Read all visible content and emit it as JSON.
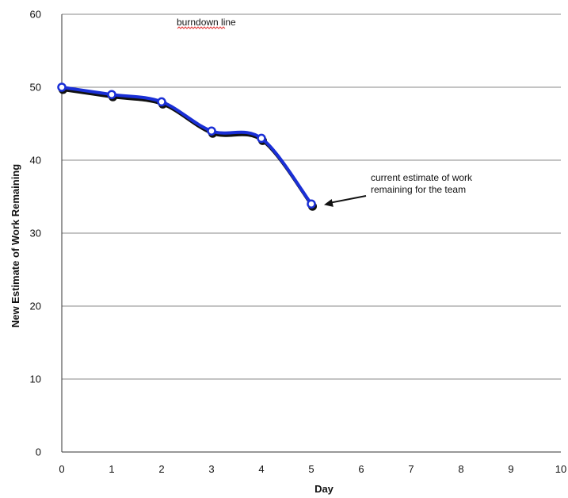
{
  "chart_data": {
    "type": "line",
    "title": "",
    "xlabel": "Day",
    "ylabel": "New Estimate of Work Remaining",
    "xlim": [
      0,
      10
    ],
    "ylim": [
      0,
      60
    ],
    "x_ticks": [
      "0",
      "1",
      "2",
      "3",
      "4",
      "5",
      "6",
      "7",
      "8",
      "9",
      "10"
    ],
    "y_ticks": [
      "0",
      "10",
      "20",
      "30",
      "40",
      "50",
      "60"
    ],
    "grid": "horizontal",
    "legend": "none",
    "series": [
      {
        "color": "#1a2fd6",
        "x": [
          0,
          1,
          2,
          3,
          4,
          5
        ],
        "y": [
          50,
          49,
          48,
          44,
          43,
          34
        ]
      }
    ],
    "annotations": [
      {
        "text": "burndown line"
      },
      {
        "lines": [
          "current estimate of work",
          "remaining for the team"
        ],
        "points_to": {
          "x": 5,
          "y": 34
        }
      }
    ]
  }
}
